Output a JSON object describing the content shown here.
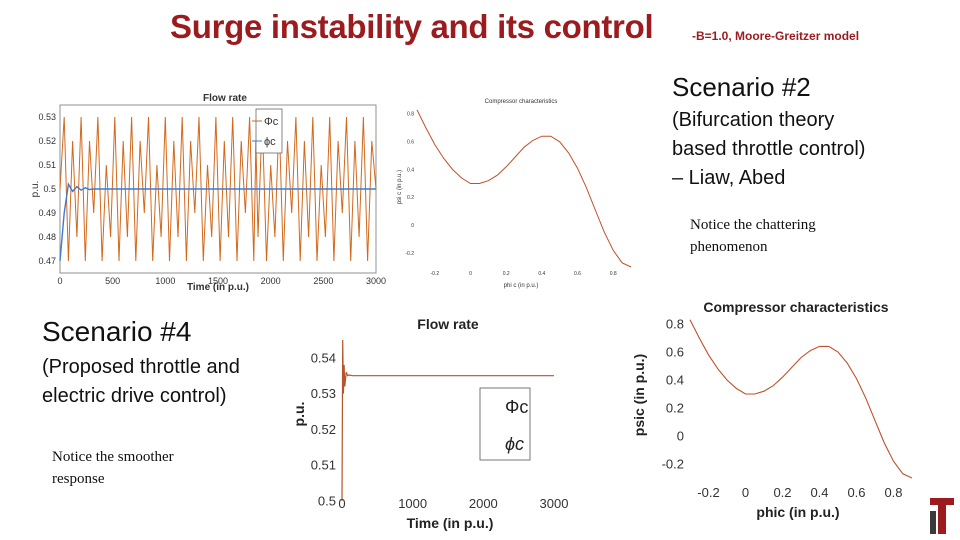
{
  "slide": {
    "title": "Surge instability and its control",
    "subtitle": "-B=1.0, Moore-Greitzer model"
  },
  "scenario2": {
    "heading": "Scenario #2",
    "description": [
      "(Bifurcation theory",
      "based throttle control)",
      "– Liaw, Abed"
    ],
    "note": [
      "Notice the chattering",
      "phenomenon"
    ]
  },
  "scenario4": {
    "heading": "Scenario #4",
    "description": [
      "(Proposed throttle and",
      "electric drive control)"
    ],
    "note": [
      "Notice the smoother",
      "response"
    ]
  },
  "colors": {
    "title": "#9b1b1e",
    "series_phi_big": "#d2691e",
    "series_phi_small": "#3a7bd5",
    "curve": "#c0502a"
  },
  "chart_data": [
    {
      "type": "line",
      "title": "Flow rate",
      "xlabel": "Time (in p.u.)",
      "ylabel": "p.u.",
      "xlim": [
        0,
        3000
      ],
      "ylim": [
        0.465,
        0.535
      ],
      "xticks": [
        "0",
        "500",
        "1000",
        "1500",
        "2000",
        "2500",
        "3000"
      ],
      "yticks": [
        "0.53",
        "0.52",
        "0.51",
        "0.5",
        "0.49",
        "0.48",
        "0.47"
      ],
      "legend": [
        "Φc",
        "ϕc"
      ],
      "legend_position": "top-right",
      "series": [
        {
          "name": "Φc",
          "x": [
            0,
            40,
            80,
            120,
            160,
            200,
            240,
            280,
            320,
            360,
            400,
            440,
            480,
            520,
            560,
            600,
            640,
            680,
            720,
            760,
            800,
            840,
            880,
            920,
            960,
            1000,
            1040,
            1080,
            1120,
            1160,
            1200,
            1240,
            1280,
            1320,
            1360,
            1400,
            1440,
            1480,
            1520,
            1560,
            1600,
            1640,
            1680,
            1720,
            1760,
            1800,
            1840,
            1860,
            1880,
            1920,
            1960,
            2000,
            2040,
            2080,
            2120,
            2160,
            2200,
            2240,
            2280,
            2320,
            2360,
            2400,
            2440,
            2480,
            2520,
            2560,
            2600,
            2640,
            2680,
            2720,
            2760,
            2800,
            2840,
            2880,
            2920,
            2960,
            3000
          ],
          "values": [
            0.5,
            0.53,
            0.47,
            0.52,
            0.48,
            0.53,
            0.47,
            0.52,
            0.49,
            0.53,
            0.47,
            0.51,
            0.48,
            0.53,
            0.47,
            0.52,
            0.48,
            0.53,
            0.47,
            0.52,
            0.49,
            0.53,
            0.47,
            0.51,
            0.48,
            0.53,
            0.47,
            0.52,
            0.48,
            0.53,
            0.47,
            0.52,
            0.49,
            0.53,
            0.47,
            0.51,
            0.48,
            0.53,
            0.47,
            0.52,
            0.48,
            0.53,
            0.47,
            0.52,
            0.49,
            0.53,
            0.47,
            0.52,
            0.48,
            0.53,
            0.47,
            0.51,
            0.48,
            0.53,
            0.47,
            0.52,
            0.49,
            0.53,
            0.47,
            0.52,
            0.48,
            0.53,
            0.47,
            0.51,
            0.48,
            0.53,
            0.47,
            0.52,
            0.49,
            0.53,
            0.47,
            0.52,
            0.48,
            0.53,
            0.47,
            0.52,
            0.5
          ]
        },
        {
          "name": "ϕc",
          "x": [
            0,
            40,
            80,
            120,
            160,
            200,
            240,
            280,
            320,
            400,
            600,
            800,
            1000,
            1500,
            2000,
            2500,
            3000
          ],
          "values": [
            0.47,
            0.49,
            0.502,
            0.499,
            0.501,
            0.4995,
            0.5005,
            0.4998,
            0.5,
            0.5,
            0.5,
            0.5,
            0.5,
            0.5,
            0.5,
            0.5,
            0.5
          ]
        }
      ]
    },
    {
      "type": "line",
      "title": "Compressor characteristics",
      "xlabel": "phi c (in p.u.)",
      "ylabel": "psi c (in p.u.)",
      "xlim": [
        -0.3,
        0.9
      ],
      "ylim": [
        -0.3,
        0.85
      ],
      "xticks": [
        "-0.2",
        "0",
        "0.2",
        "0.4",
        "0.6",
        "0.8"
      ],
      "yticks": [
        "0.8",
        "0.6",
        "0.4",
        "0.2",
        "0",
        "-0.2"
      ],
      "series": [
        {
          "name": "",
          "x": [
            -0.3,
            -0.25,
            -0.2,
            -0.15,
            -0.1,
            -0.05,
            0,
            0.05,
            0.1,
            0.15,
            0.2,
            0.25,
            0.3,
            0.35,
            0.4,
            0.45,
            0.5,
            0.55,
            0.6,
            0.65,
            0.7,
            0.75,
            0.8,
            0.85,
            0.9
          ],
          "values": [
            0.83,
            0.7,
            0.58,
            0.48,
            0.4,
            0.34,
            0.3,
            0.3,
            0.32,
            0.36,
            0.42,
            0.49,
            0.56,
            0.61,
            0.64,
            0.64,
            0.6,
            0.52,
            0.41,
            0.27,
            0.11,
            -0.05,
            -0.18,
            -0.27,
            -0.3
          ]
        }
      ]
    },
    {
      "type": "line",
      "title": "Flow rate",
      "xlabel": "Time (in p.u.)",
      "ylabel": "p.u.",
      "xlim": [
        0,
        3000
      ],
      "ylim": [
        0.498,
        0.545
      ],
      "xticks": [
        "0",
        "1000",
        "2000",
        "3000"
      ],
      "yticks": [
        "0.54",
        "0.53",
        "0.52",
        "0.51",
        "0.5"
      ],
      "legend": [
        "Φc",
        "ϕc"
      ],
      "legend_position": "bottom-right",
      "series": [
        {
          "name": "Φc",
          "x": [
            0,
            10,
            20,
            30,
            40,
            60,
            80,
            100,
            150,
            200,
            400,
            1000,
            2000,
            3000
          ],
          "values": [
            0.5,
            0.545,
            0.53,
            0.538,
            0.532,
            0.536,
            0.535,
            0.5352,
            0.535,
            0.535,
            0.535,
            0.535,
            0.535,
            0.535
          ]
        },
        {
          "name": "ϕc",
          "x": [
            0,
            20,
            50,
            100,
            200,
            400,
            1000,
            2000,
            3000
          ],
          "values": [
            0.5,
            0.53,
            0.534,
            0.535,
            0.535,
            0.535,
            0.535,
            0.535,
            0.535
          ]
        }
      ]
    },
    {
      "type": "line",
      "title": "Compressor characteristics",
      "xlabel": "phic (in p.u.)",
      "ylabel": "psic (in p.u.)",
      "xlim": [
        -0.3,
        0.9
      ],
      "ylim": [
        -0.35,
        0.85
      ],
      "xticks": [
        "-0.2",
        "0",
        "0.2",
        "0.4",
        "0.6",
        "0.8"
      ],
      "yticks": [
        "0.8",
        "0.6",
        "0.4",
        "0.2",
        "0",
        "-0.2"
      ],
      "series": [
        {
          "name": "",
          "x": [
            -0.3,
            -0.25,
            -0.2,
            -0.15,
            -0.1,
            -0.05,
            0,
            0.05,
            0.1,
            0.15,
            0.2,
            0.25,
            0.3,
            0.35,
            0.4,
            0.45,
            0.5,
            0.55,
            0.6,
            0.65,
            0.7,
            0.75,
            0.8,
            0.85,
            0.9
          ],
          "values": [
            0.83,
            0.7,
            0.58,
            0.48,
            0.4,
            0.34,
            0.3,
            0.3,
            0.32,
            0.36,
            0.42,
            0.49,
            0.56,
            0.61,
            0.64,
            0.64,
            0.6,
            0.52,
            0.41,
            0.27,
            0.11,
            -0.05,
            -0.18,
            -0.27,
            -0.3
          ]
        }
      ]
    }
  ]
}
